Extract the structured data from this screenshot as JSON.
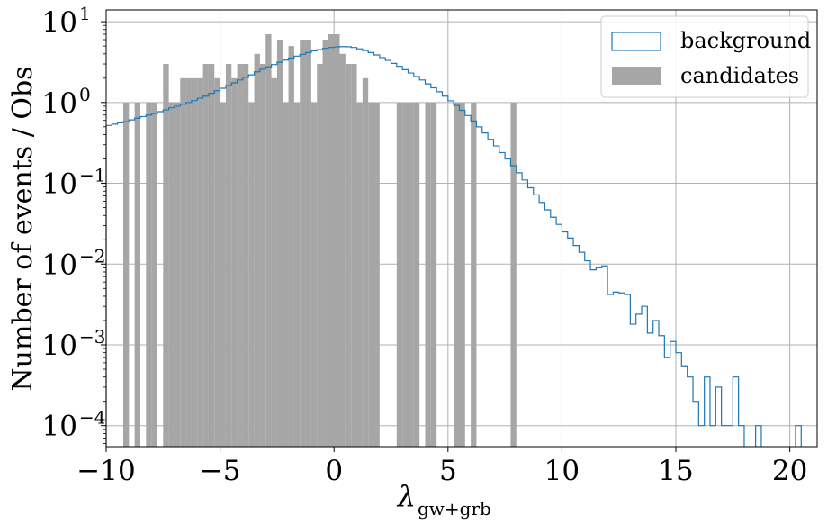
{
  "colors": {
    "background_line": "#1f77b4",
    "candidates_fill": "#a6a6a6",
    "grid": "#b0b0b0",
    "axes": "#000000"
  },
  "chart_data": {
    "type": "bar",
    "xlabel": "λ",
    "xlabel_subscript": "gw+grb",
    "ylabel": "Number of events / Obs",
    "xlim": [
      -10,
      21.2
    ],
    "ylim": [
      5.5e-05,
      14
    ],
    "yscale": "log",
    "grid": true,
    "legend_position": "top-right",
    "x_ticks": [
      {
        "value": -10,
        "label": "−10"
      },
      {
        "value": -5,
        "label": "−5"
      },
      {
        "value": 0,
        "label": "0"
      },
      {
        "value": 5,
        "label": "5"
      },
      {
        "value": 10,
        "label": "10"
      },
      {
        "value": 15,
        "label": "15"
      },
      {
        "value": 20,
        "label": "20"
      }
    ],
    "y_ticks": [
      {
        "value": 0.0001,
        "base": "10",
        "exp": "−4"
      },
      {
        "value": 0.001,
        "base": "10",
        "exp": "−3"
      },
      {
        "value": 0.01,
        "base": "10",
        "exp": "−2"
      },
      {
        "value": 0.1,
        "base": "10",
        "exp": "−1"
      },
      {
        "value": 1,
        "base": "10",
        "exp": "0"
      },
      {
        "value": 10,
        "base": "10",
        "exp": "1"
      }
    ],
    "series": [
      {
        "name": "background",
        "kind": "step",
        "bin_width": 0.25,
        "edges_start": -10,
        "values": [
          0.52,
          0.54,
          0.56,
          0.58,
          0.61,
          0.64,
          0.67,
          0.7,
          0.73,
          0.77,
          0.81,
          0.86,
          0.9,
          0.95,
          1.0,
          1.06,
          1.13,
          1.2,
          1.3,
          1.4,
          1.5,
          1.62,
          1.75,
          1.9,
          2.05,
          2.2,
          2.4,
          2.58,
          2.76,
          2.95,
          3.15,
          3.35,
          3.55,
          3.75,
          3.95,
          4.15,
          4.35,
          4.52,
          4.68,
          4.8,
          4.88,
          4.92,
          4.9,
          4.8,
          4.62,
          4.4,
          4.15,
          3.88,
          3.6,
          3.32,
          3.05,
          2.8,
          2.55,
          2.32,
          2.1,
          1.9,
          1.7,
          1.52,
          1.36,
          1.2,
          1.05,
          0.92,
          0.8,
          0.69,
          0.59,
          0.5,
          0.42,
          0.35,
          0.29,
          0.24,
          0.2,
          0.165,
          0.135,
          0.11,
          0.088,
          0.072,
          0.058,
          0.047,
          0.038,
          0.031,
          0.025,
          0.021,
          0.017,
          0.014,
          0.011,
          0.0085,
          0.009,
          0.0095,
          0.0042,
          0.0045,
          0.0044,
          0.0042,
          0.0018,
          0.0024,
          0.003,
          0.0014,
          0.002,
          0.0013,
          0.0007,
          0.0011,
          0.0008,
          0.00055,
          0.0004,
          0.0002,
          0.0001,
          0.0004,
          0.0001,
          0.0003,
          0.0001,
          0.0001,
          0.0004,
          0.0001,
          0,
          0,
          0.0001,
          0,
          0,
          0,
          0,
          0,
          0,
          0.0001,
          0,
          0,
          0,
          0,
          0,
          0,
          0,
          0,
          0,
          0,
          0,
          0,
          0,
          0,
          0,
          0,
          0,
          0,
          0,
          0,
          0,
          0,
          0,
          0,
          0,
          0,
          0,
          0
        ]
      },
      {
        "name": "candidates",
        "kind": "bars",
        "bin_width": 0.25,
        "bars": [
          {
            "x": -9.125,
            "y": 1
          },
          {
            "x": -8.625,
            "y": 1
          },
          {
            "x": -8.125,
            "y": 1
          },
          {
            "x": -7.875,
            "y": 1
          },
          {
            "x": -7.375,
            "y": 3
          },
          {
            "x": -7.125,
            "y": 1
          },
          {
            "x": -6.875,
            "y": 1
          },
          {
            "x": -6.625,
            "y": 2
          },
          {
            "x": -6.375,
            "y": 2
          },
          {
            "x": -6.125,
            "y": 2
          },
          {
            "x": -5.875,
            "y": 2
          },
          {
            "x": -5.625,
            "y": 3
          },
          {
            "x": -5.375,
            "y": 3
          },
          {
            "x": -5.125,
            "y": 2
          },
          {
            "x": -4.875,
            "y": 1
          },
          {
            "x": -4.625,
            "y": 3
          },
          {
            "x": -4.375,
            "y": 2
          },
          {
            "x": -4.125,
            "y": 3
          },
          {
            "x": -3.875,
            "y": 3
          },
          {
            "x": -3.625,
            "y": 1
          },
          {
            "x": -3.375,
            "y": 4
          },
          {
            "x": -3.125,
            "y": 3
          },
          {
            "x": -2.875,
            "y": 7
          },
          {
            "x": -2.625,
            "y": 2
          },
          {
            "x": -2.375,
            "y": 6
          },
          {
            "x": -2.125,
            "y": 1
          },
          {
            "x": -1.875,
            "y": 5
          },
          {
            "x": -1.625,
            "y": 1
          },
          {
            "x": -1.375,
            "y": 6
          },
          {
            "x": -1.125,
            "y": 6
          },
          {
            "x": -0.875,
            "y": 1
          },
          {
            "x": -0.625,
            "y": 3
          },
          {
            "x": -0.375,
            "y": 6
          },
          {
            "x": -0.125,
            "y": 7
          },
          {
            "x": 0.125,
            "y": 7
          },
          {
            "x": 0.375,
            "y": 4
          },
          {
            "x": 0.625,
            "y": 3
          },
          {
            "x": 0.875,
            "y": 3
          },
          {
            "x": 1.125,
            "y": 1
          },
          {
            "x": 1.375,
            "y": 2
          },
          {
            "x": 1.625,
            "y": 1
          },
          {
            "x": 1.875,
            "y": 1
          },
          {
            "x": 2.875,
            "y": 1
          },
          {
            "x": 3.125,
            "y": 1
          },
          {
            "x": 3.375,
            "y": 1
          },
          {
            "x": 3.625,
            "y": 1
          },
          {
            "x": 4.125,
            "y": 1
          },
          {
            "x": 4.375,
            "y": 1
          },
          {
            "x": 5.375,
            "y": 1
          },
          {
            "x": 5.625,
            "y": 1
          },
          {
            "x": 6.125,
            "y": 1
          },
          {
            "x": 7.875,
            "y": 1
          }
        ]
      }
    ]
  }
}
